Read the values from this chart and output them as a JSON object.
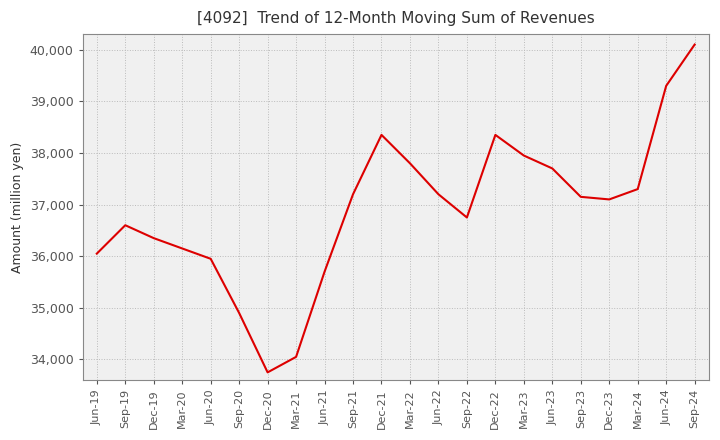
{
  "title": "[4092]  Trend of 12-Month Moving Sum of Revenues",
  "ylabel": "Amount (million yen)",
  "background_color": "#ffffff",
  "plot_bg_color": "#f0f0f0",
  "line_color": "#dd0000",
  "grid_color": "#bbbbbb",
  "ylim": [
    33600,
    40300
  ],
  "yticks": [
    34000,
    35000,
    36000,
    37000,
    38000,
    39000,
    40000
  ],
  "x_labels": [
    "Jun-19",
    "Sep-19",
    "Dec-19",
    "Mar-20",
    "Jun-20",
    "Sep-20",
    "Dec-20",
    "Mar-21",
    "Jun-21",
    "Sep-21",
    "Dec-21",
    "Mar-22",
    "Jun-22",
    "Sep-22",
    "Dec-22",
    "Mar-23",
    "Jun-23",
    "Sep-23",
    "Dec-23",
    "Mar-24",
    "Jun-24",
    "Sep-24"
  ],
  "y_values": [
    36050,
    36600,
    36350,
    36150,
    35950,
    34900,
    33750,
    34050,
    35700,
    37200,
    38350,
    37800,
    37200,
    36750,
    38350,
    37950,
    37700,
    37150,
    37100,
    37300,
    39300,
    40100
  ]
}
